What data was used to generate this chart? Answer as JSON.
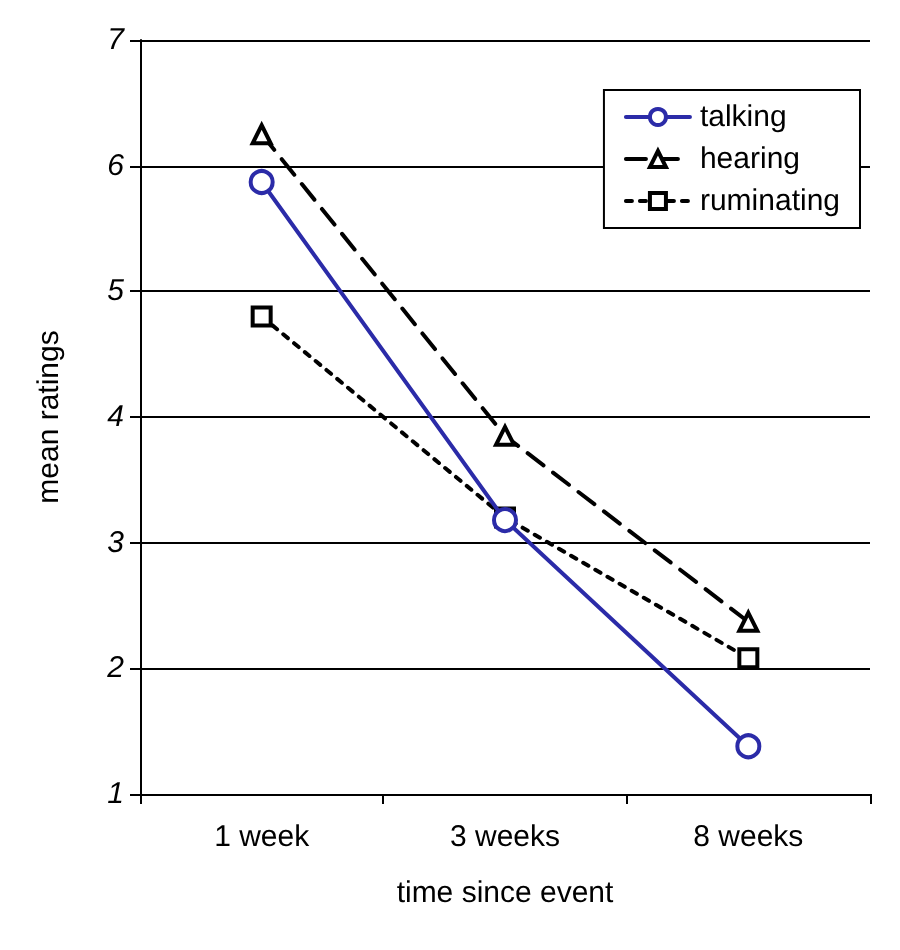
{
  "chart_data": {
    "type": "line",
    "xlabel": "time since event",
    "ylabel": "mean ratings",
    "categories": [
      "1 week",
      "3 weeks",
      "8 weeks"
    ],
    "series": [
      {
        "name": "talking",
        "color": "#2b2ba8",
        "values": [
          5.87,
          3.18,
          1.38
        ],
        "marker": "circle",
        "line_style": "solid"
      },
      {
        "name": "hearing",
        "color": "#000000",
        "values": [
          6.25,
          3.85,
          2.37
        ],
        "marker": "triangle",
        "line_style": "dashed"
      },
      {
        "name": "ruminating",
        "color": "#000000",
        "values": [
          4.8,
          3.2,
          2.08
        ],
        "marker": "square",
        "line_style": "dotted"
      }
    ],
    "ylim": [
      1,
      7
    ],
    "yticks": [
      1,
      2,
      3,
      4,
      5,
      6,
      7
    ],
    "grid": "y",
    "legend": "top right"
  }
}
